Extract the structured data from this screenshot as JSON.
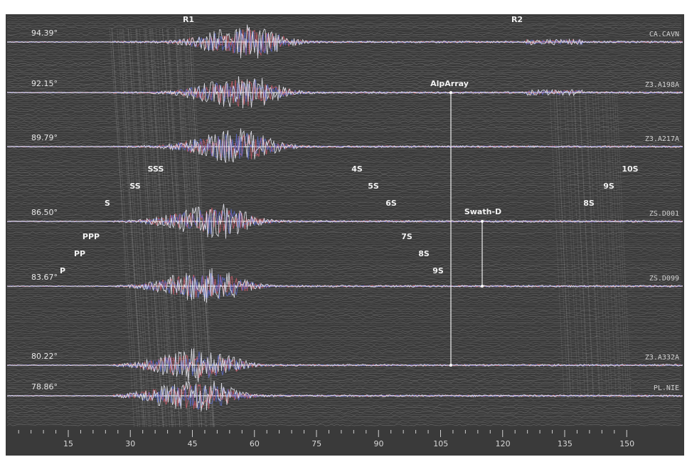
{
  "stations": [
    {
      "distance": "94.39°",
      "name": "CA.CAVN"
    },
    {
      "distance": "92.15°",
      "name": "Z3.A198A"
    },
    {
      "distance": "89.79°",
      "name": "Z3.A217A"
    },
    {
      "distance": "86.50°",
      "name": "ZS.D001"
    },
    {
      "distance": "83.67°",
      "name": "ZS.D099"
    },
    {
      "distance": "80.22°",
      "name": "Z3.A332A"
    },
    {
      "distance": "78.86°",
      "name": "PL.NIE"
    }
  ],
  "groups": [
    "AlpArray",
    "Swath-D"
  ],
  "phases": [
    "R1",
    "R2",
    "SSS",
    "SS",
    "S",
    "4S",
    "5S",
    "6S",
    "10S",
    "9S",
    "8S",
    "PPP",
    "PP",
    "P",
    "7S",
    "8S",
    "9S"
  ],
  "time_axis": [
    "15",
    "30",
    "45",
    "60",
    "75",
    "90",
    "105",
    "120",
    "135",
    "150"
  ]
}
